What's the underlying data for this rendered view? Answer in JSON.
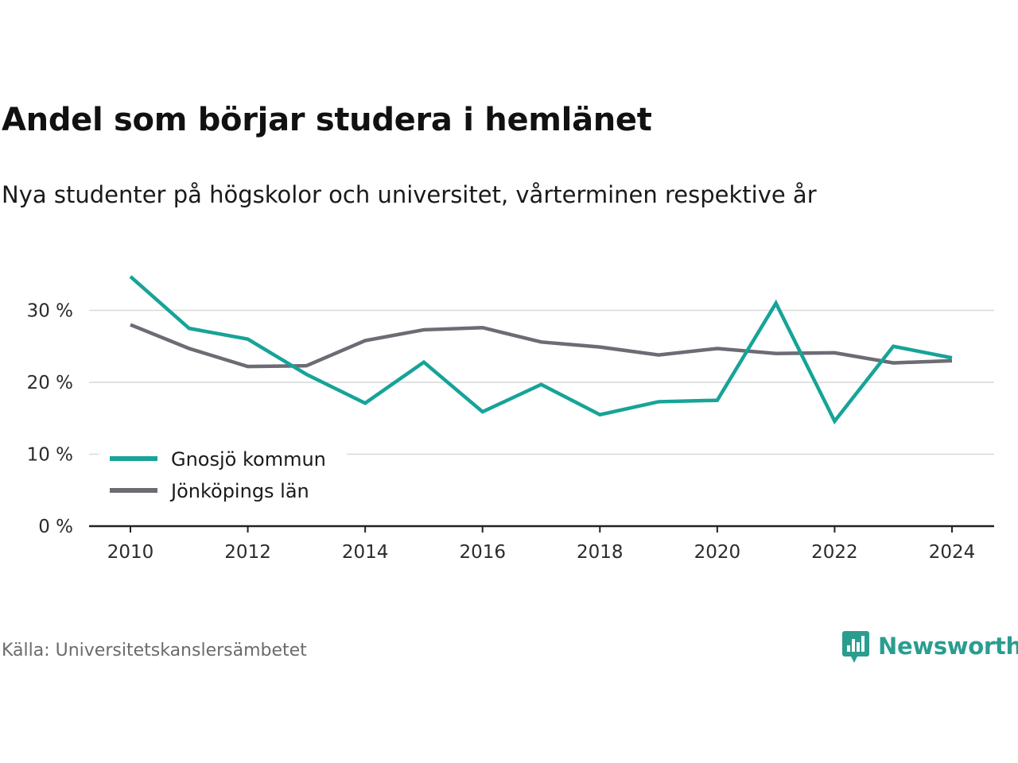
{
  "chart_data": {
    "type": "line",
    "title": "Andel som börjar studera i hemlänet",
    "subtitle": "Nya studenter på högskolor och universitet, vårterminen respektive år",
    "x": [
      2010,
      2011,
      2012,
      2013,
      2014,
      2015,
      2016,
      2017,
      2018,
      2019,
      2020,
      2021,
      2022,
      2023,
      2024
    ],
    "x_ticks": [
      2010,
      2012,
      2014,
      2016,
      2018,
      2020,
      2022,
      2024
    ],
    "y_ticks": [
      0,
      10,
      20,
      30
    ],
    "y_tick_suffix": " %",
    "ylim": [
      0,
      35
    ],
    "grid": true,
    "legend_position": "lower-left",
    "series": [
      {
        "name": "Gnosjö kommun",
        "color": "#17a398",
        "values": [
          34.7,
          27.5,
          26.0,
          21.1,
          17.1,
          22.8,
          15.9,
          19.7,
          15.5,
          17.3,
          17.5,
          31.0,
          14.6,
          25.0,
          23.4
        ]
      },
      {
        "name": "Jönköpings län",
        "color": "#6d6b73",
        "values": [
          28.0,
          24.7,
          22.2,
          22.3,
          25.8,
          27.3,
          27.6,
          25.6,
          24.9,
          23.8,
          24.7,
          24.0,
          24.1,
          22.7,
          23.0
        ]
      }
    ],
    "source": "Källa: Universitetskanslersämbetet"
  },
  "brand": {
    "name": "Newsworthy",
    "color": "#2a9d8f",
    "icon": "newsworthy-logo-icon"
  }
}
